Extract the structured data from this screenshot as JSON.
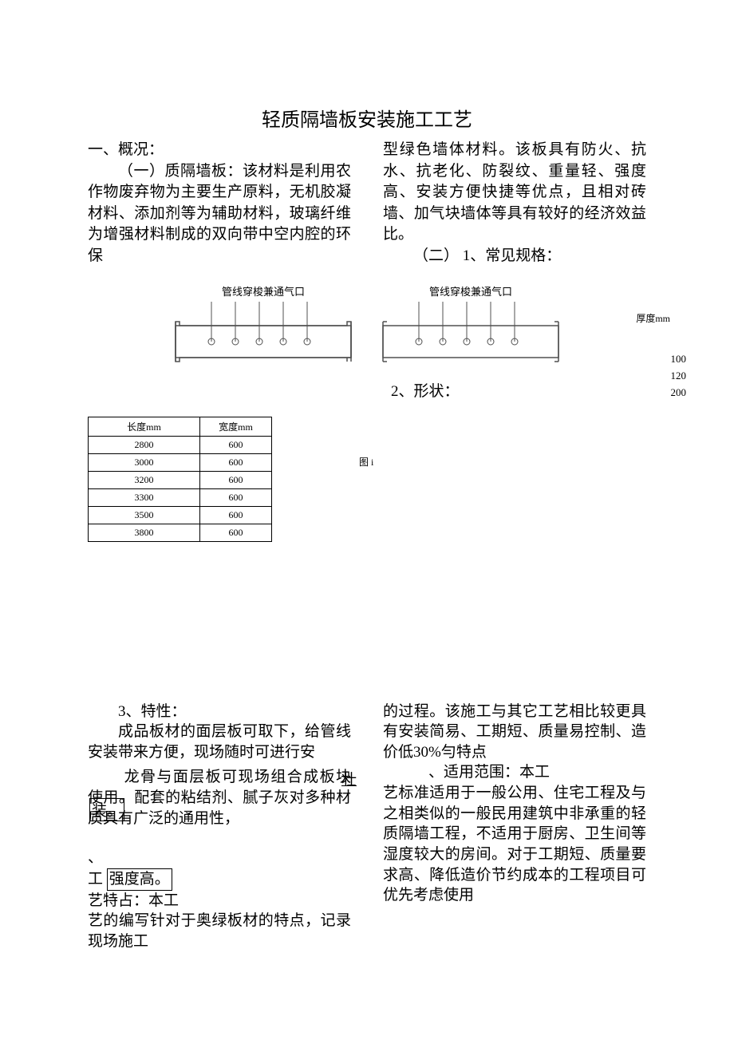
{
  "title": "轻质隔墙板安装施工工艺",
  "section1": {
    "head": "一、概况：",
    "para_left": "（一）质隔墙板：该材料是利用农作物废弃物为主要生产原料，无机胶凝材料、添加剂等为辅助材料，玻璃纤维为增强材料制成的双向带中空内腔的环保",
    "para_right_1": "型绿色墙体材料。该板具有防火、抗水、抗老化、防裂纹、重量轻、强度高、安装方便快捷等优点，且相对砖墙、加气块墙体等具有较好的经济效益比。",
    "para_right_2": "（二） 1、常见规格："
  },
  "diagram": {
    "label": "管线穿梭兼通气口",
    "caption": "图 i",
    "thickness_header": "厚度mm",
    "thickness_values": [
      "100",
      "120",
      "200"
    ],
    "stroke": "#505050",
    "fill": "#ffffff"
  },
  "shape_label": "2、形状：",
  "spec_table": {
    "columns": [
      "长度mm",
      "宽度mm"
    ],
    "rows": [
      [
        "2800",
        "600"
      ],
      [
        "3000",
        "600"
      ],
      [
        "3200",
        "600"
      ],
      [
        "3300",
        "600"
      ],
      [
        "3500",
        "600"
      ],
      [
        "3800",
        "600"
      ]
    ]
  },
  "section3": {
    "head": "3、特性：",
    "left_p1": "成品板材的面层板可取下，给管线安装带来方便，现场随时可进行安",
    "zhuang": "壮",
    "zhuang2_pre": "装。",
    "left_p2": "龙骨与面层板可现场组合成板块使用。配套的粘结剂、腻子灰对多种材质具有广泛的通用性，",
    "bullet": "、",
    "gong": "工",
    "boxed": "强度高。",
    "yi_line": "艺特占：本工",
    "left_p3": "艺的编写针对于奥绿板材的特点，记录现场施工",
    "right_p1": "的过程。该施工与其它工艺相比较更具有安装简易、工期短、质量易控制、造价低30%勻特点",
    "right_p2_a": "、适用范围：本工",
    "right_p2_b": "艺标准适用于一般公用、住宅工程及与之相类似的一般民用建筑中非承重的轻质隔墙工程，不适用于厨房、卫生间等湿度较大的房间。对于工期短、质量要求高、降低造价节约成本的工程项目可优先考虑使用"
  },
  "colors": {
    "text": "#000000",
    "bg": "#ffffff",
    "border": "#000000"
  }
}
